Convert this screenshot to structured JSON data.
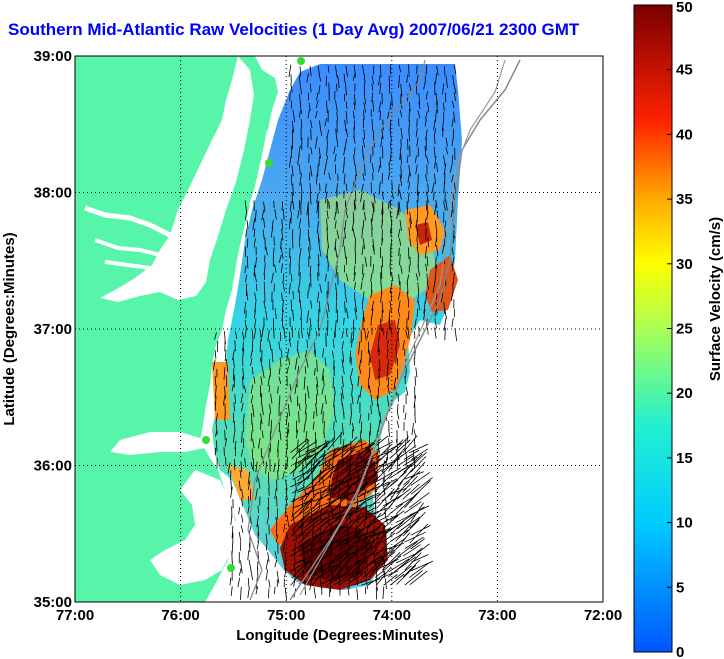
{
  "title": "Southern Mid-Atlantic Raw Velocities (1 Day Avg) 2007/06/21 2300 GMT",
  "xlabel": "Longitude (Degrees:Minutes)",
  "ylabel": "Latitude (Degrees:Minutes)",
  "colorbar": {
    "label": "Surface Velocity (cm/s)",
    "min": 0,
    "max": 50,
    "ticks": [
      "0",
      "5",
      "10",
      "15",
      "20",
      "25",
      "30",
      "35",
      "40",
      "45",
      "50"
    ]
  },
  "axes": {
    "x_ticks": [
      "77:00",
      "76:00",
      "75:00",
      "74:00",
      "73:00",
      "72:00"
    ],
    "y_ticks": [
      "39:00",
      "38:00",
      "37:00",
      "36:00",
      "35:00"
    ],
    "xlim": [
      -77,
      -72
    ],
    "ylim": [
      35,
      39
    ],
    "grid": true
  },
  "colors": {
    "land": "#57f5a9",
    "water": "#ffffff",
    "title": "#0000ff",
    "stations": "#33dd33",
    "bathymetry": "#888888"
  }
}
